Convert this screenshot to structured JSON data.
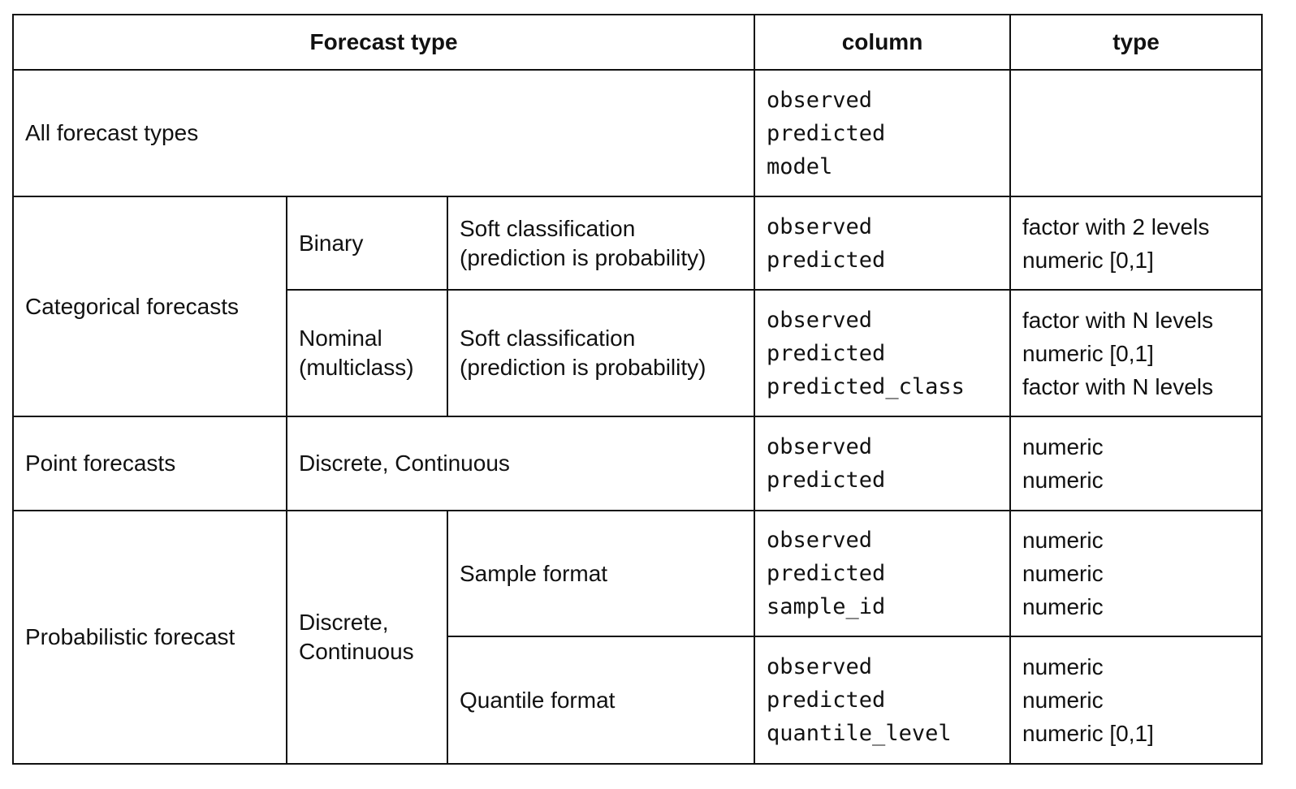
{
  "header": {
    "forecast_type": "Forecast type",
    "column": "column",
    "type": "type"
  },
  "rows": {
    "all": {
      "label": "All forecast types",
      "columns": [
        "observed",
        "predicted",
        "model"
      ],
      "types": []
    },
    "categorical": {
      "label": "Categorical forecasts",
      "binary": {
        "label": "Binary",
        "sub": [
          "Soft classification",
          "(prediction is probability)"
        ],
        "columns": [
          "observed",
          "predicted"
        ],
        "types": [
          "factor with 2 levels",
          "numeric [0,1]"
        ]
      },
      "nominal": {
        "label": [
          "Nominal",
          "(multiclass)"
        ],
        "sub": [
          "Soft classification",
          "(prediction is probability)"
        ],
        "columns": [
          "observed",
          "predicted",
          "predicted_class"
        ],
        "types": [
          "factor with N levels",
          "numeric [0,1]",
          "factor with N levels"
        ]
      }
    },
    "point": {
      "label": "Point forecasts",
      "sub": "Discrete, Continuous",
      "columns": [
        "observed",
        "predicted"
      ],
      "types": [
        "numeric",
        "numeric"
      ]
    },
    "probabilistic": {
      "label": "Probabilistic forecast",
      "sub": [
        "Discrete,",
        "Continuous"
      ],
      "sample": {
        "label": "Sample format",
        "columns": [
          "observed",
          "predicted",
          "sample_id"
        ],
        "types": [
          "numeric",
          "numeric",
          "numeric"
        ]
      },
      "quantile": {
        "label": "Quantile format",
        "columns": [
          "observed",
          "predicted",
          "quantile_level"
        ],
        "types": [
          "numeric",
          "numeric",
          "numeric [0,1]"
        ]
      }
    }
  }
}
